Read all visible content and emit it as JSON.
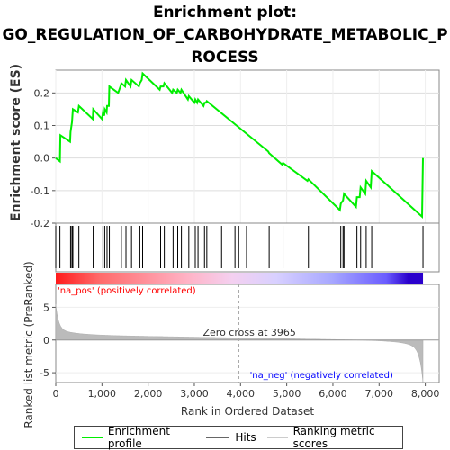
{
  "title_lines": [
    "Enrichment plot:",
    "GO_REGULATION_OF_CARBOHYDRATE_METABOLIC_P",
    "ROCESS"
  ],
  "colors": {
    "profile": "#00ee00",
    "hits": "#000000",
    "metric_fill": "#bbbbbb",
    "zero_line": "#aaaaaa",
    "pos_label": "#ff0000",
    "neg_label": "#0000ff"
  },
  "legend": [
    {
      "label": "Enrichment profile",
      "color": "#00ee00",
      "kind": "line"
    },
    {
      "label": "Hits",
      "color": "#000000",
      "kind": "line"
    },
    {
      "label": "Ranking metric scores",
      "color": "#cccccc",
      "kind": "line"
    }
  ],
  "chart_data": {
    "type": "line",
    "title": "Enrichment plot: GO_REGULATION_OF_CARBOHYDRATE_METABOLIC_PROCESS",
    "xlabel": "Rank in Ordered Dataset",
    "ylabel": "Enrichment score (ES)",
    "ylabel_bottom": "Ranked list metric (PreRanked)",
    "xlim": [
      0,
      8300
    ],
    "x_ticks": [
      0,
      1000,
      2000,
      3000,
      4000,
      5000,
      6000,
      7000,
      8000
    ],
    "x_tick_labels": [
      "0",
      "1,000",
      "2,000",
      "3,000",
      "4,000",
      "5,000",
      "6,000",
      "7,000",
      "8,000"
    ],
    "es_ylim": [
      -0.2,
      0.27
    ],
    "es_ticks": [
      -0.2,
      -0.1,
      0.0,
      0.1,
      0.2
    ],
    "es_tick_labels": [
      "-0.2",
      "-0.1",
      "0.0",
      "0.1",
      "0.2"
    ],
    "metric_ylim": [
      -6.5,
      8.5
    ],
    "metric_ticks": [
      -5,
      0,
      5
    ],
    "metric_tick_labels": [
      "-5",
      "0",
      "5"
    ],
    "series": [
      {
        "name": "Enrichment profile",
        "x": [
          0,
          90,
          100,
          310,
          320,
          350,
          370,
          480,
          500,
          800,
          810,
          1000,
          1020,
          1050,
          1060,
          1100,
          1110,
          1150,
          1160,
          1350,
          1400,
          1420,
          1500,
          1520,
          1620,
          1640,
          1800,
          1820,
          1860,
          1880,
          2250,
          2270,
          2330,
          2350,
          2520,
          2540,
          2620,
          2640,
          2700,
          2720,
          2860,
          2880,
          3000,
          3020,
          3060,
          3080,
          3200,
          3220,
          3250,
          3270,
          4600,
          4620,
          4900,
          4920,
          5450,
          5470,
          6150,
          6170,
          6220,
          6240,
          6500,
          6520,
          6580,
          6600,
          6700,
          6720,
          6820,
          6840,
          7930,
          7950
        ],
        "y": [
          0.0,
          -0.01,
          0.07,
          0.05,
          0.08,
          0.11,
          0.15,
          0.14,
          0.16,
          0.12,
          0.15,
          0.12,
          0.14,
          0.13,
          0.15,
          0.14,
          0.16,
          0.16,
          0.22,
          0.2,
          0.22,
          0.23,
          0.22,
          0.24,
          0.22,
          0.24,
          0.22,
          0.23,
          0.24,
          0.26,
          0.21,
          0.22,
          0.22,
          0.23,
          0.2,
          0.21,
          0.2,
          0.21,
          0.2,
          0.21,
          0.18,
          0.19,
          0.17,
          0.18,
          0.17,
          0.18,
          0.16,
          0.17,
          0.17,
          0.175,
          0.02,
          0.015,
          -0.02,
          -0.015,
          -0.07,
          -0.065,
          -0.16,
          -0.14,
          -0.13,
          -0.11,
          -0.15,
          -0.12,
          -0.12,
          -0.09,
          -0.11,
          -0.07,
          -0.09,
          -0.04,
          -0.18,
          0.0
        ]
      }
    ],
    "hits": [
      0,
      90,
      320,
      350,
      370,
      500,
      810,
      1020,
      1060,
      1110,
      1160,
      1420,
      1520,
      1640,
      1820,
      1880,
      2270,
      2350,
      2540,
      2640,
      2720,
      2880,
      3020,
      3080,
      3220,
      3270,
      3590,
      3880,
      3960,
      4130,
      4620,
      4920,
      5470,
      6170,
      6220,
      6240,
      6520,
      6600,
      6720,
      6840,
      7950
    ],
    "zero_cross": 3965,
    "zero_cross_label": "Zero cross at 3965",
    "pos_label": "'na_pos' (positively correlated)",
    "neg_label": "'na_neg' (negatively correlated)"
  }
}
